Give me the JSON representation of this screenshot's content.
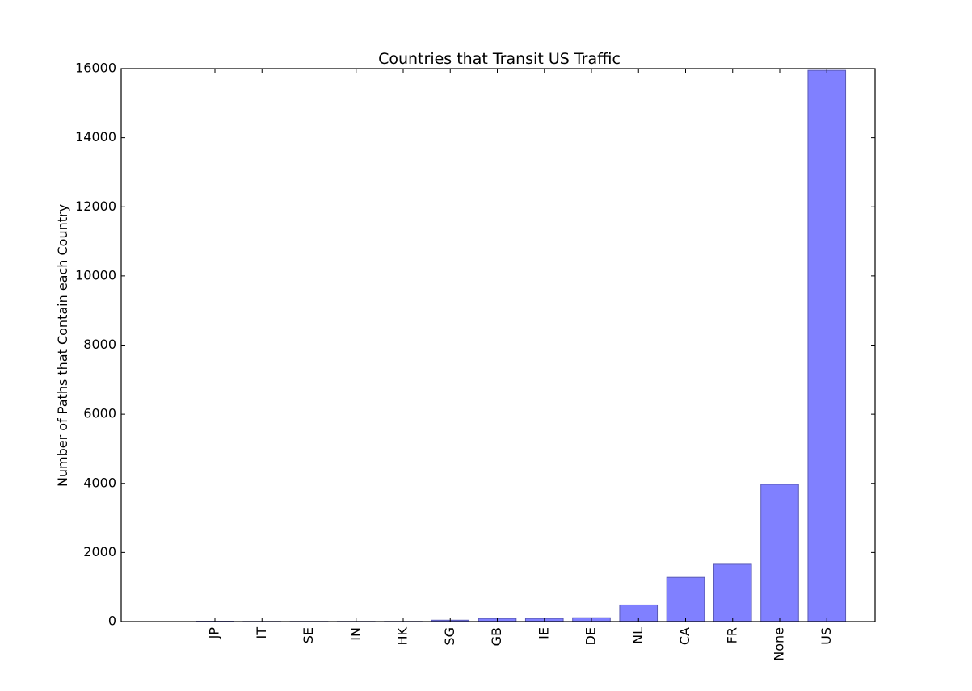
{
  "chart_data": {
    "type": "bar",
    "title": "Countries that Transit US  Traffic",
    "xlabel": "",
    "ylabel": "Number of Paths that Contain each Country",
    "categories": [
      "JP",
      "IT",
      "SE",
      "IN",
      "HK",
      "SG",
      "GB",
      "IE",
      "DE",
      "NL",
      "CA",
      "FR",
      "None",
      "US"
    ],
    "values": [
      10,
      5,
      5,
      5,
      5,
      40,
      90,
      90,
      110,
      480,
      1280,
      1660,
      3970,
      15950
    ],
    "ylim": [
      0,
      16000
    ],
    "yticks": [
      0,
      2000,
      4000,
      6000,
      8000,
      10000,
      12000,
      14000,
      16000
    ],
    "grid": false,
    "legend": "none",
    "bar_color": "#8080ff",
    "bar_edge_color": "#5a5ab4"
  }
}
